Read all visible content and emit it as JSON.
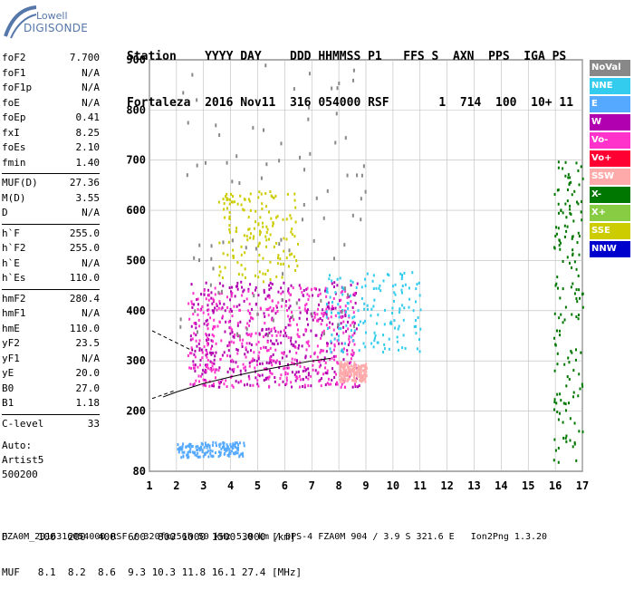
{
  "logo": {
    "line1": "Lowell",
    "line2": "DIGISONDE"
  },
  "header": {
    "line1": "Station    YYYY DAY    DDD HHMMSS P1   FFS S  AXN  PPS  IGA PS",
    "line2": "Fortaleza  2016 Nov11  316 054000 RSF       1  714  100  10+ 11"
  },
  "params": [
    {
      "name": "foF2",
      "value": "7.700"
    },
    {
      "name": "foF1",
      "value": "N/A"
    },
    {
      "name": "foF1p",
      "value": "N/A"
    },
    {
      "name": "foE",
      "value": "N/A"
    },
    {
      "name": "foEp",
      "value": "0.41"
    },
    {
      "name": "fxI",
      "value": "8.25"
    },
    {
      "name": "foEs",
      "value": "2.10"
    },
    {
      "name": "fmin",
      "value": "1.40"
    },
    {
      "name": "MUF(D)",
      "value": "27.36"
    },
    {
      "name": "M(D)",
      "value": "3.55"
    },
    {
      "name": "D",
      "value": "N/A"
    },
    {
      "name": "h`F",
      "value": "255.0"
    },
    {
      "name": "h`F2",
      "value": "255.0"
    },
    {
      "name": "h`E",
      "value": "N/A"
    },
    {
      "name": "h`Es",
      "value": "110.0"
    },
    {
      "name": "hmF2",
      "value": "280.4"
    },
    {
      "name": "hmF1",
      "value": "N/A"
    },
    {
      "name": "hmE",
      "value": "110.0"
    },
    {
      "name": "yF2",
      "value": "23.5"
    },
    {
      "name": "yF1",
      "value": "N/A"
    },
    {
      "name": "yE",
      "value": "20.0"
    },
    {
      "name": "B0",
      "value": "27.0"
    },
    {
      "name": "B1",
      "value": "1.18"
    },
    {
      "name": "C-level",
      "value": "33"
    }
  ],
  "auto": {
    "line1": "Auto:",
    "line2": "Artist5",
    "line3": "500200"
  },
  "legend": [
    {
      "label": "NoVal",
      "color": "#888888"
    },
    {
      "label": "NNE",
      "color": "#33ccee"
    },
    {
      "label": "E",
      "color": "#55aaff"
    },
    {
      "label": "W",
      "color": "#b000b0"
    },
    {
      "label": "Vo-",
      "color": "#ff33cc"
    },
    {
      "label": "Vo+",
      "color": "#ff0033"
    },
    {
      "label": "SSW",
      "color": "#ffaaaa"
    },
    {
      "label": "X-",
      "color": "#007700"
    },
    {
      "label": "X+",
      "color": "#88cc44"
    },
    {
      "label": "SSE",
      "color": "#cccc00"
    },
    {
      "label": "NNW",
      "color": "#0000cc"
    }
  ],
  "bottom": {
    "line1": "D     100  200  400  600  800 1000 1500 3000 [km]",
    "line2": "MUF   8.1  8.2  8.6  9.3 10.3 11.8 16.1 27.4 [MHz]"
  },
  "footer": "FZA0M_2016316054000.RSF / 320fx256h 50 kHz 5.0 km / DPS-4 FZA0M 904 / 3.9 S 321.6 E   Ion2Png 1.3.20",
  "chart_data": {
    "type": "scatter",
    "xlim": [
      1,
      17
    ],
    "ylim": [
      80,
      900
    ],
    "x_ticks": [
      1,
      2,
      3,
      4,
      5,
      6,
      7,
      8,
      9,
      10,
      11,
      12,
      13,
      14,
      15,
      16,
      17
    ],
    "y_ticks": [
      80,
      200,
      300,
      400,
      500,
      600,
      700,
      800,
      900
    ],
    "grid": true,
    "series": [
      {
        "name": "W",
        "color": "#b000b0",
        "region": {
          "x": [
            2.5,
            8.8
          ],
          "y": [
            250,
            460
          ]
        }
      },
      {
        "name": "Vo-",
        "color": "#ff33cc",
        "region": {
          "x": [
            2.4,
            8.6
          ],
          "y": [
            250,
            450
          ]
        }
      },
      {
        "name": "NNE",
        "color": "#33ccee",
        "region": {
          "x": [
            7.5,
            11.0
          ],
          "y": [
            320,
            480
          ]
        }
      },
      {
        "name": "SSE",
        "color": "#cccc00",
        "region": {
          "x": [
            3.5,
            6.5
          ],
          "y": [
            460,
            640
          ]
        }
      },
      {
        "name": "E",
        "color": "#55aaff",
        "region": {
          "x": [
            2.0,
            4.5
          ],
          "y": [
            110,
            140
          ]
        }
      },
      {
        "name": "SSW",
        "color": "#ffaaaa",
        "region": {
          "x": [
            8.0,
            9.0
          ],
          "y": [
            260,
            300
          ]
        }
      },
      {
        "name": "X-",
        "color": "#007700",
        "region": {
          "x": [
            15.9,
            17.0
          ],
          "y": [
            100,
            700
          ]
        }
      },
      {
        "name": "NoVal",
        "color": "#888888",
        "region": {
          "x": [
            2.0,
            9.0
          ],
          "y": [
            350,
            900
          ]
        }
      }
    ],
    "profile_trace": [
      [
        1.5,
        228
      ],
      [
        2.0,
        238
      ],
      [
        3.0,
        255
      ],
      [
        4.0,
        268
      ],
      [
        5.0,
        280
      ],
      [
        6.0,
        290
      ],
      [
        7.0,
        300
      ],
      [
        7.7,
        305
      ]
    ]
  }
}
